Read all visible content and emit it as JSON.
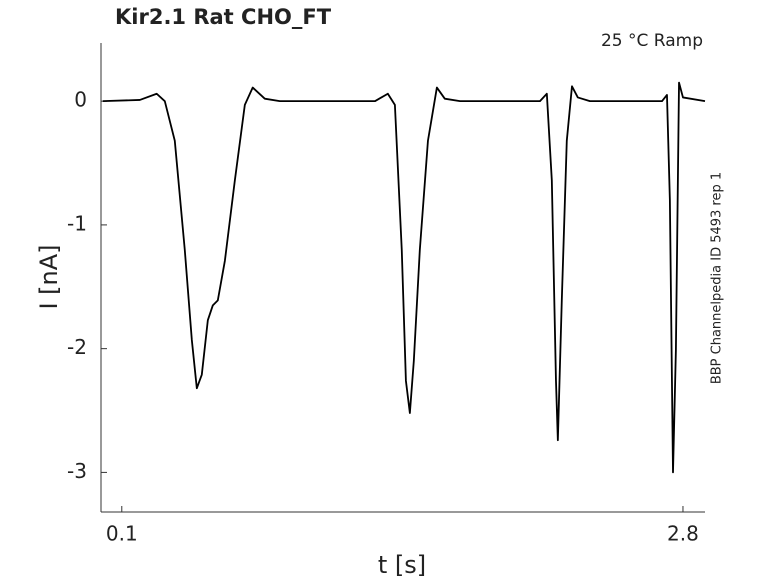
{
  "chart_data": {
    "type": "line",
    "title": "Kir2.1  Rat  CHO_FT",
    "subtitle": "25 °C  Ramp",
    "side_note": "BBP Channelpedia ID 5493 rep 1",
    "x_label": "t [s]",
    "y_label": "I [nA]",
    "xlim": [
      0,
      2.906
    ],
    "ylim": [
      -3.32,
      0.47
    ],
    "xticks": [
      0.1,
      2.8
    ],
    "yticks": [
      0,
      -1,
      -2,
      -3
    ],
    "series": [
      {
        "color": "#000000",
        "x": [
          0.009,
          0.187,
          0.268,
          0.307,
          0.355,
          0.403,
          0.437,
          0.461,
          0.485,
          0.514,
          0.538,
          0.562,
          0.596,
          0.644,
          0.692,
          0.73,
          0.788,
          0.86,
          1.318,
          1.38,
          1.414,
          1.447,
          1.467,
          1.486,
          1.505,
          1.534,
          1.573,
          1.616,
          1.654,
          1.727,
          2.112,
          2.145,
          2.169,
          2.189,
          2.198,
          2.217,
          2.241,
          2.266,
          2.294,
          2.352,
          2.699,
          2.723,
          2.737,
          2.752,
          2.766,
          2.781,
          2.8,
          2.906
        ],
        "values": [
          0,
          0.01,
          0.06,
          0,
          -0.32,
          -1.2,
          -1.93,
          -2.32,
          -2.21,
          -1.77,
          -1.65,
          -1.61,
          -1.29,
          -0.64,
          -0.03,
          0.11,
          0.02,
          0,
          0,
          0.06,
          -0.03,
          -1.2,
          -2.26,
          -2.52,
          -2.1,
          -1.2,
          -0.32,
          0.11,
          0.02,
          0,
          0,
          0.06,
          -0.64,
          -2.26,
          -2.74,
          -1.61,
          -0.32,
          0.12,
          0.03,
          0,
          0,
          0.05,
          -0.8,
          -3.0,
          -2.01,
          0.15,
          0.03,
          0
        ]
      }
    ]
  }
}
